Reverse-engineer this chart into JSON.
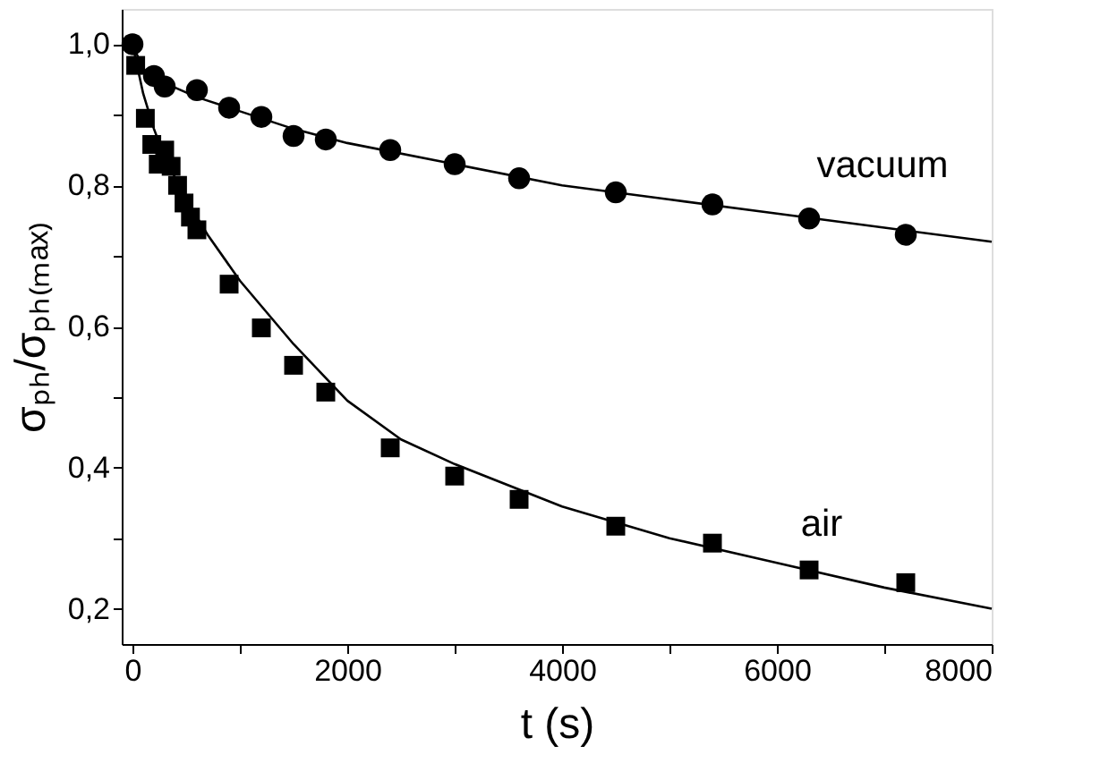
{
  "chart_data": {
    "type": "scatter",
    "xlabel": "t (s)",
    "ylabel": "σₚₕ/σₚₕ₍ₘₐₓ₎",
    "xlim": [
      -100,
      8000
    ],
    "ylim": [
      0.15,
      1.05
    ],
    "xticks": [
      {
        "value": 0,
        "label": "0"
      },
      {
        "value": 1000,
        "label": null
      },
      {
        "value": 2000,
        "label": "2000"
      },
      {
        "value": 3000,
        "label": null
      },
      {
        "value": 4000,
        "label": "4000"
      },
      {
        "value": 5000,
        "label": null
      },
      {
        "value": 6000,
        "label": "6000"
      },
      {
        "value": 7000,
        "label": null
      },
      {
        "value": 8000,
        "label": "8000"
      }
    ],
    "yticks": [
      {
        "value": 0.2,
        "label": "0,2"
      },
      {
        "value": 0.3,
        "label": null
      },
      {
        "value": 0.4,
        "label": "0,4"
      },
      {
        "value": 0.5,
        "label": null
      },
      {
        "value": 0.6,
        "label": "0,6"
      },
      {
        "value": 0.7,
        "label": null
      },
      {
        "value": 0.8,
        "label": "0,8"
      },
      {
        "value": 0.9,
        "label": null
      },
      {
        "value": 1.0,
        "label": "1,0"
      }
    ],
    "grid": false,
    "series": [
      {
        "name": "vacuum",
        "marker": "circle",
        "color": "#000000",
        "x": [
          0,
          200,
          300,
          600,
          900,
          1200,
          1500,
          1800,
          2400,
          3000,
          3600,
          4500,
          5400,
          6300,
          7200
        ],
        "values": [
          1.0,
          0.955,
          0.94,
          0.935,
          0.91,
          0.897,
          0.87,
          0.865,
          0.85,
          0.83,
          0.81,
          0.79,
          0.773,
          0.753,
          0.73
        ]
      },
      {
        "name": "air",
        "marker": "square",
        "color": "#000000",
        "x": [
          30,
          120,
          180,
          240,
          300,
          360,
          420,
          480,
          540,
          600,
          900,
          1200,
          1500,
          1800,
          2400,
          3000,
          3600,
          4500,
          5400,
          6300,
          7200
        ],
        "values": [
          0.97,
          0.895,
          0.858,
          0.83,
          0.85,
          0.827,
          0.8,
          0.775,
          0.755,
          0.737,
          0.66,
          0.598,
          0.545,
          0.507,
          0.428,
          0.388,
          0.355,
          0.317,
          0.293,
          0.255,
          0.237
        ]
      },
      {
        "type": "line",
        "marker": "none",
        "line_style": "solid",
        "color": "#000000",
        "x": [
          -100,
          0,
          100,
          300,
          600,
          1000,
          1500,
          2000,
          3000,
          4000,
          5000,
          6000,
          7000,
          8000
        ],
        "values": [
          1.0,
          1.0,
          0.965,
          0.945,
          0.925,
          0.905,
          0.88,
          0.86,
          0.83,
          0.8,
          0.78,
          0.76,
          0.74,
          0.72
        ]
      },
      {
        "type": "line",
        "marker": "none",
        "line_style": "solid",
        "color": "#000000",
        "x": [
          -100,
          0,
          100,
          200,
          300,
          500,
          700,
          1000,
          1500,
          2000,
          2500,
          3000,
          4000,
          5000,
          6000,
          7000,
          8000
        ],
        "values": [
          1.0,
          1.0,
          0.93,
          0.88,
          0.84,
          0.78,
          0.73,
          0.665,
          0.575,
          0.495,
          0.44,
          0.405,
          0.345,
          0.3,
          0.265,
          0.23,
          0.2
        ]
      }
    ]
  }
}
